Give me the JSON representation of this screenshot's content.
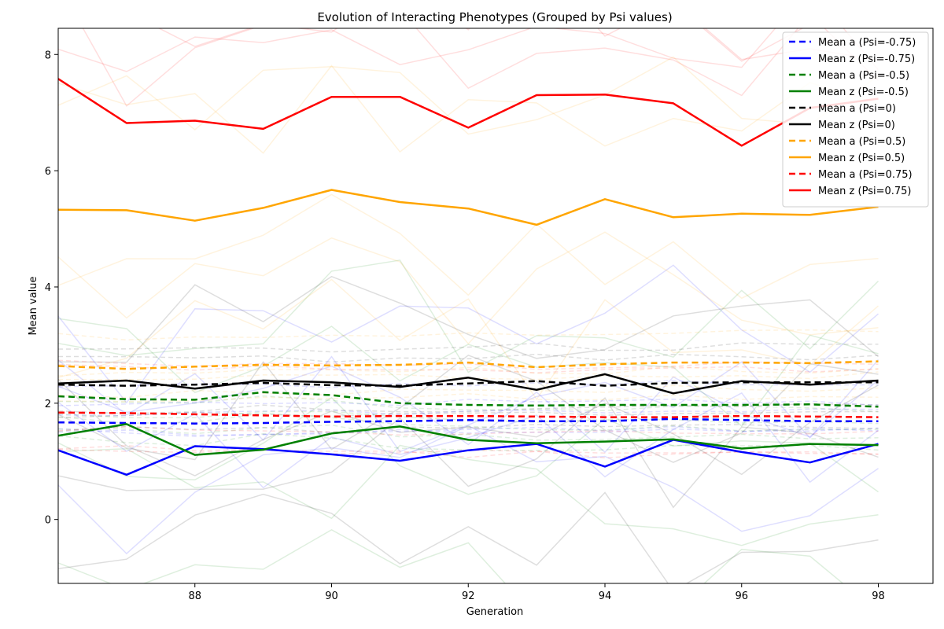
{
  "chart_data": {
    "type": "line",
    "title": "Evolution of Interacting Phenotypes (Grouped by Psi values)",
    "xlabel": "Generation",
    "ylabel": "Mean value",
    "xlim": [
      86,
      98.8
    ],
    "ylim": [
      -1.1,
      8.45
    ],
    "xticks": [
      88,
      90,
      92,
      94,
      96,
      98
    ],
    "yticks": [
      0,
      2,
      4,
      6,
      8
    ],
    "legend_position": "top-right",
    "grid": false,
    "x": [
      86,
      87,
      88,
      89,
      90,
      91,
      92,
      93,
      94,
      95,
      96,
      97,
      98
    ],
    "series": [
      {
        "name": "Mean a (Psi=-0.75)",
        "color": "#0000ff",
        "style": "dashed",
        "values": [
          1.67,
          1.66,
          1.65,
          1.66,
          1.68,
          1.69,
          1.71,
          1.69,
          1.69,
          1.73,
          1.71,
          1.69,
          1.69
        ]
      },
      {
        "name": "Mean z (Psi=-0.75)",
        "color": "#0000ff",
        "style": "solid",
        "values": [
          1.19,
          0.77,
          1.26,
          1.21,
          1.12,
          1.01,
          1.19,
          1.3,
          0.91,
          1.37,
          1.16,
          0.98,
          1.3
        ]
      },
      {
        "name": "Mean a (Psi=-0.5)",
        "color": "#008000",
        "style": "dashed",
        "values": [
          2.12,
          2.07,
          2.06,
          2.19,
          2.14,
          2.0,
          1.97,
          1.96,
          1.97,
          1.97,
          1.97,
          1.98,
          1.94
        ]
      },
      {
        "name": "Mean z (Psi=-0.5)",
        "color": "#008000",
        "style": "solid",
        "values": [
          1.44,
          1.64,
          1.11,
          1.2,
          1.48,
          1.6,
          1.37,
          1.31,
          1.34,
          1.38,
          1.22,
          1.3,
          1.28
        ]
      },
      {
        "name": "Mean a (Psi=0)",
        "color": "#000000",
        "style": "dashed",
        "values": [
          2.32,
          2.3,
          2.32,
          2.35,
          2.31,
          2.3,
          2.34,
          2.38,
          2.3,
          2.35,
          2.36,
          2.36,
          2.36
        ]
      },
      {
        "name": "Mean z (Psi=0)",
        "color": "#000000",
        "style": "solid",
        "values": [
          2.34,
          2.39,
          2.25,
          2.39,
          2.36,
          2.28,
          2.44,
          2.23,
          2.5,
          2.17,
          2.38,
          2.32,
          2.39
        ]
      },
      {
        "name": "Mean a (Psi=0.5)",
        "color": "#ffa500",
        "style": "dashed",
        "values": [
          2.64,
          2.59,
          2.63,
          2.66,
          2.65,
          2.66,
          2.7,
          2.62,
          2.67,
          2.7,
          2.7,
          2.69,
          2.72
        ]
      },
      {
        "name": "Mean z (Psi=0.5)",
        "color": "#ffa500",
        "style": "solid",
        "values": [
          5.33,
          5.32,
          5.14,
          5.36,
          5.67,
          5.46,
          5.35,
          5.07,
          5.51,
          5.2,
          5.26,
          5.24,
          5.38
        ]
      },
      {
        "name": "Mean a (Psi=0.75)",
        "color": "#ff0000",
        "style": "dashed",
        "values": [
          1.84,
          1.83,
          1.81,
          1.79,
          1.77,
          1.78,
          1.78,
          1.77,
          1.76,
          1.76,
          1.78,
          1.77,
          1.76
        ]
      },
      {
        "name": "Mean z (Psi=0.75)",
        "color": "#ff0000",
        "style": "solid",
        "values": [
          7.58,
          6.82,
          6.86,
          6.72,
          7.27,
          7.27,
          6.74,
          7.3,
          7.31,
          7.16,
          6.43,
          7.08,
          7.24
        ]
      }
    ]
  }
}
